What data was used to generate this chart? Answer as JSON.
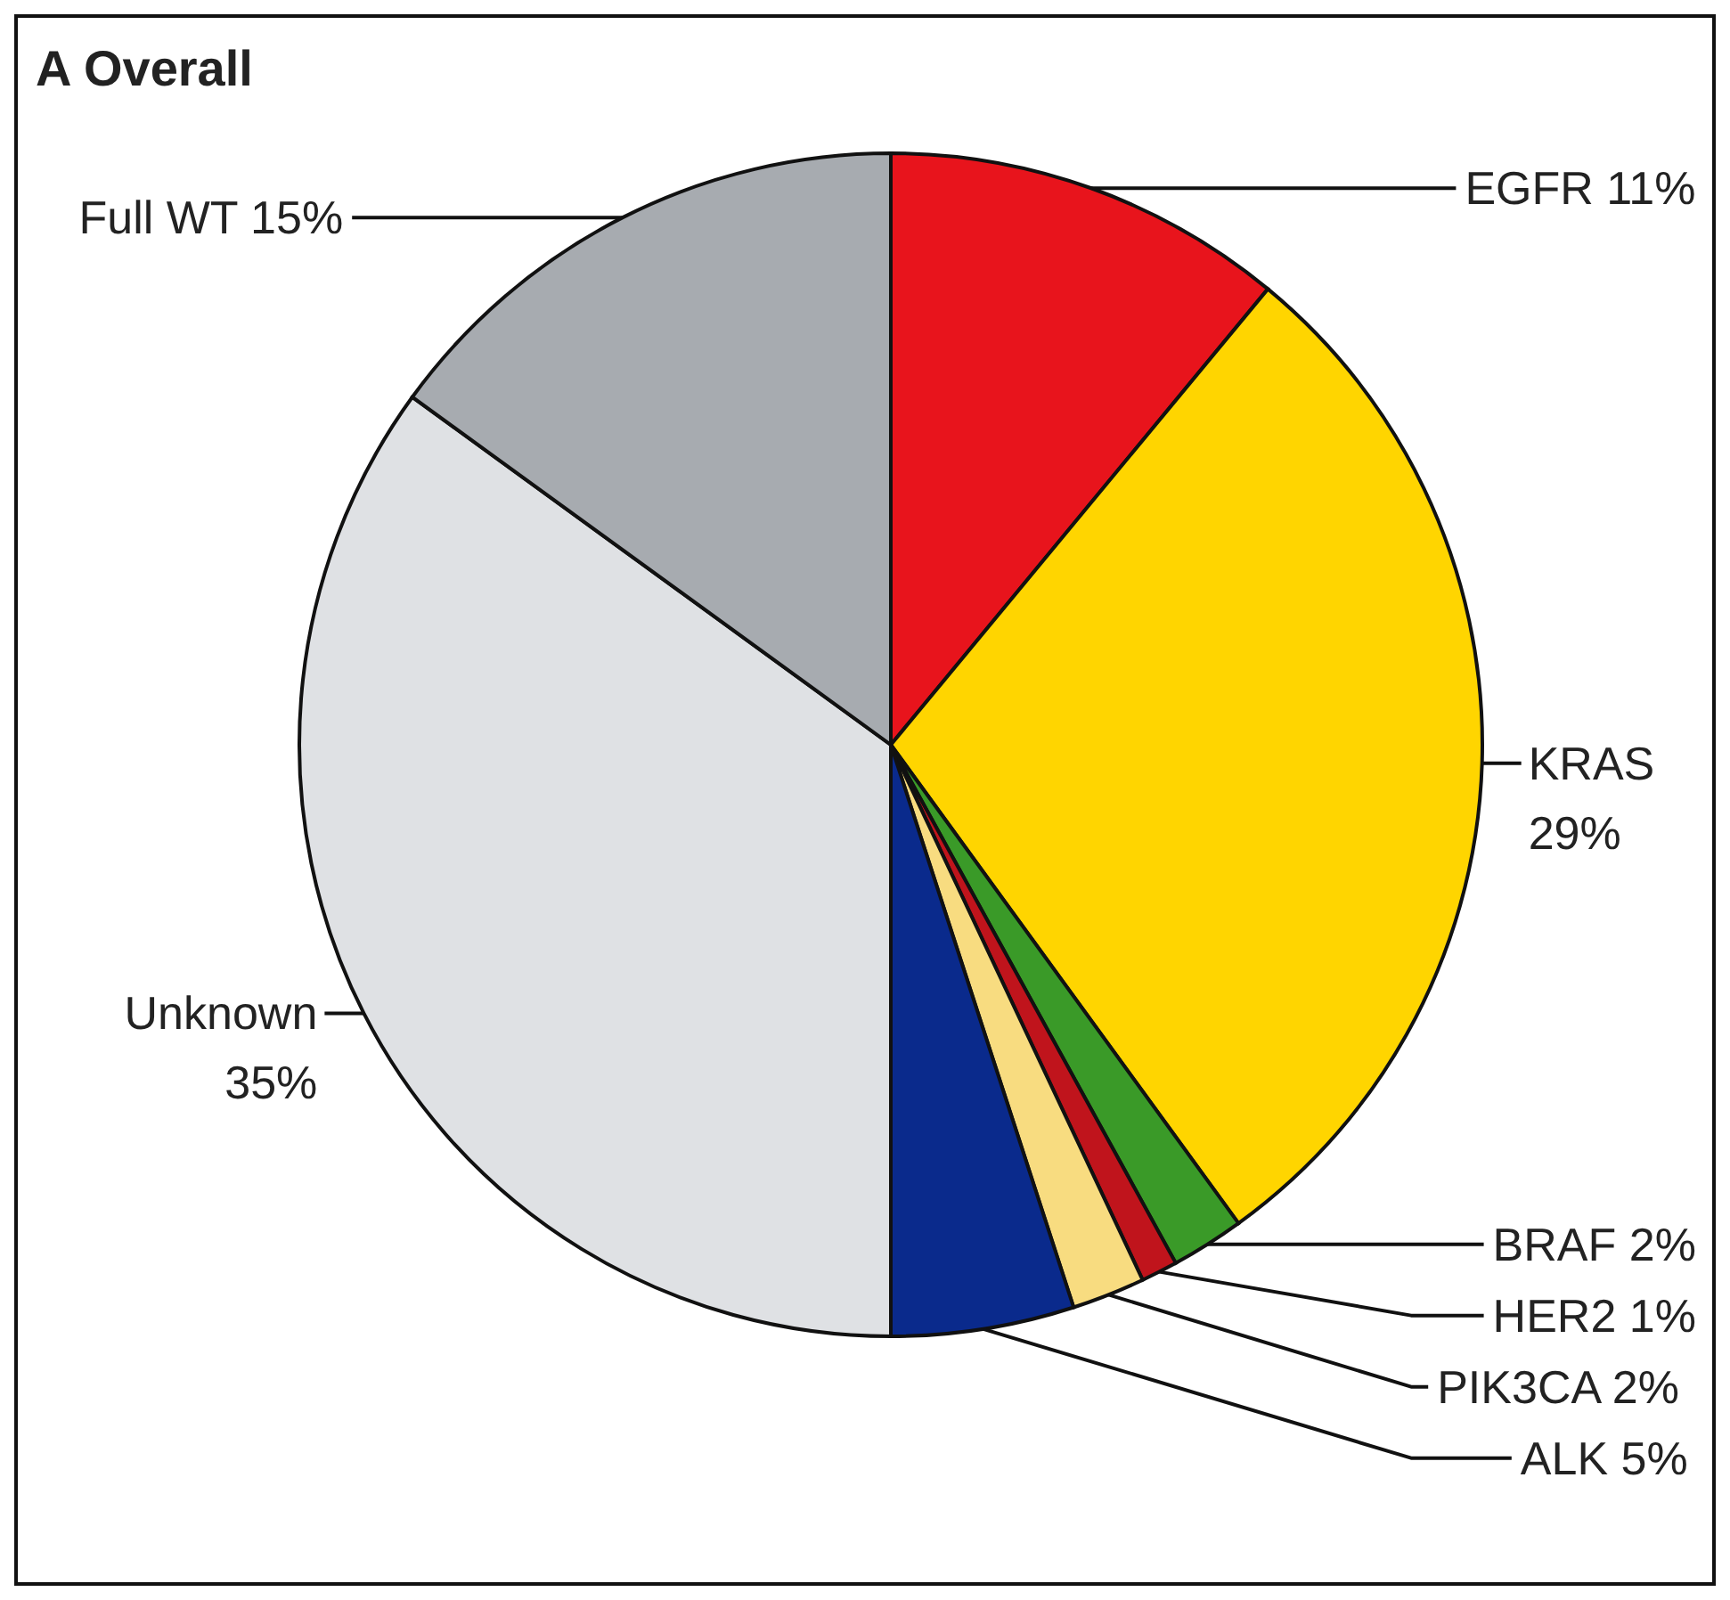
{
  "chart_data": {
    "type": "pie",
    "title": "A  Overall",
    "categories": [
      "EGFR",
      "KRAS",
      "BRAF",
      "HER2",
      "PIK3CA",
      "ALK",
      "Unknown",
      "Full WT"
    ],
    "values": [
      11,
      29,
      2,
      1,
      2,
      5,
      35,
      15
    ],
    "value_labels": [
      "11%",
      "29%",
      "2%",
      "1%",
      "2%",
      "5%",
      "35%",
      "15%"
    ],
    "colors": [
      "#e8141c",
      "#ffd500",
      "#3a9a28",
      "#c0141c",
      "#f8dc80",
      "#0a2a8c",
      "#dfe1e4",
      "#a7abb0"
    ]
  }
}
